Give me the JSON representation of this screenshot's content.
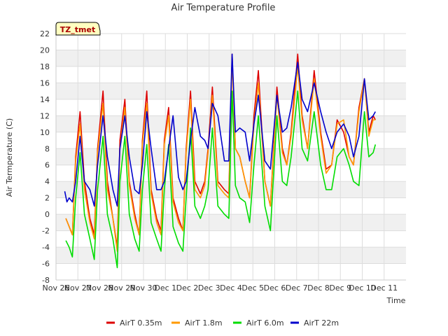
{
  "chart_data": {
    "type": "line",
    "title": "Air Temperature Profile",
    "xlabel": "Time",
    "ylabel": "Air Termperature (C)",
    "site_badge": "TZ_tmet",
    "ylim": [
      -8,
      22
    ],
    "yticks": [
      -8,
      -6,
      -4,
      -2,
      0,
      2,
      4,
      6,
      8,
      10,
      12,
      14,
      16,
      18,
      20,
      22
    ],
    "xlim": [
      0,
      16
    ],
    "xticks": [
      {
        "x": 0,
        "label": "Nov 26"
      },
      {
        "x": 1,
        "label": "Nov 27"
      },
      {
        "x": 2,
        "label": "Nov 28"
      },
      {
        "x": 3,
        "label": "Nov 29"
      },
      {
        "x": 4,
        "label": "Nov 30"
      },
      {
        "x": 5,
        "label": "Dec 1"
      },
      {
        "x": 6,
        "label": "Dec 2"
      },
      {
        "x": 7,
        "label": "Dec 3"
      },
      {
        "x": 8,
        "label": "Dec 4"
      },
      {
        "x": 9,
        "label": "Dec 5"
      },
      {
        "x": 10,
        "label": "Dec 6"
      },
      {
        "x": 11,
        "label": "Dec 7"
      },
      {
        "x": 12,
        "label": "Dec 8"
      },
      {
        "x": 13,
        "label": "Dec 9"
      },
      {
        "x": 14,
        "label": "Dec 10"
      },
      {
        "x": 15,
        "label": "Dec 11"
      }
    ],
    "grid": true,
    "legend_position": "bottom",
    "x_units": "days since Nov 26",
    "series": [
      {
        "name": "AirT 0.35m",
        "color": "#dd0000",
        "x": [
          0.45,
          0.6,
          0.75,
          0.9,
          1.1,
          1.3,
          1.55,
          1.75,
          1.9,
          2.15,
          2.35,
          2.6,
          2.8,
          2.92,
          3.15,
          3.35,
          3.6,
          3.8,
          3.95,
          4.15,
          4.35,
          4.6,
          4.8,
          4.95,
          5.15,
          5.35,
          5.6,
          5.8,
          5.95,
          6.15,
          6.35,
          6.6,
          6.8,
          6.95,
          7.15,
          7.4,
          7.7,
          7.9,
          8.05,
          8.2,
          8.4,
          8.65,
          8.85,
          9.05,
          9.25,
          9.55,
          9.8,
          10.1,
          10.35,
          10.55,
          10.75,
          11.05,
          11.25,
          11.5,
          11.8,
          12.1,
          12.35,
          12.6,
          12.85,
          13.15,
          13.4,
          13.6,
          13.85,
          14.1,
          14.3,
          14.5,
          14.6
        ],
        "values": [
          -0.5,
          -1.5,
          -2.5,
          7,
          12.5,
          4,
          -0.5,
          -2.5,
          8,
          15,
          4,
          -0.5,
          -4,
          9,
          14,
          4,
          0,
          -2.5,
          9,
          15,
          3,
          -0.5,
          -2,
          9,
          13,
          2,
          -0.5,
          -2,
          8,
          15,
          4,
          2.5,
          4,
          8,
          15.5,
          4,
          3,
          2.5,
          19.5,
          8,
          7,
          4,
          2,
          12,
          17.5,
          4,
          1,
          15.5,
          8,
          6,
          10,
          19.5,
          12,
          8,
          17.5,
          10,
          5.5,
          6,
          11.5,
          10,
          7,
          6,
          13,
          16.5,
          10,
          12,
          11.5
        ]
      },
      {
        "name": "AirT 1.8m",
        "color": "#ff9900",
        "x": [
          0.45,
          0.6,
          0.75,
          0.9,
          1.1,
          1.3,
          1.55,
          1.75,
          1.9,
          2.15,
          2.35,
          2.6,
          2.8,
          2.92,
          3.15,
          3.35,
          3.6,
          3.8,
          3.95,
          4.15,
          4.35,
          4.6,
          4.8,
          4.95,
          5.15,
          5.35,
          5.6,
          5.8,
          5.95,
          6.15,
          6.35,
          6.6,
          6.8,
          6.95,
          7.15,
          7.4,
          7.7,
          7.9,
          8.05,
          8.2,
          8.4,
          8.65,
          8.85,
          9.05,
          9.25,
          9.55,
          9.8,
          10.1,
          10.35,
          10.55,
          10.75,
          11.05,
          11.25,
          11.5,
          11.8,
          12.1,
          12.35,
          12.6,
          12.85,
          13.15,
          13.4,
          13.6,
          13.85,
          14.1,
          14.3,
          14.5,
          14.6
        ],
        "values": [
          -0.5,
          -1.5,
          -2.5,
          6.5,
          11,
          3,
          -1,
          -3,
          7.5,
          13.5,
          3,
          -0.5,
          -4.5,
          8,
          13,
          3.5,
          -0.5,
          -2.5,
          8.5,
          13.5,
          2.5,
          -1,
          -2.5,
          8.5,
          12,
          1.5,
          -1,
          -2,
          7.5,
          14,
          3,
          2,
          3.5,
          7.5,
          14.5,
          3.5,
          2.5,
          2,
          19,
          8,
          7,
          4,
          2,
          11,
          16,
          4,
          1,
          14.5,
          7.5,
          6,
          9.5,
          18,
          11.5,
          8,
          16.5,
          9.5,
          5,
          6,
          11,
          11.5,
          7,
          6,
          12.5,
          16.5,
          9.5,
          11.5,
          11.5
        ]
      },
      {
        "name": "AirT 6.0m",
        "color": "#00dd00",
        "x": [
          0.45,
          0.6,
          0.75,
          0.9,
          1.1,
          1.3,
          1.55,
          1.75,
          1.9,
          2.15,
          2.35,
          2.6,
          2.8,
          2.92,
          3.15,
          3.35,
          3.6,
          3.8,
          3.95,
          4.15,
          4.35,
          4.6,
          4.8,
          4.95,
          5.15,
          5.35,
          5.6,
          5.8,
          5.95,
          6.15,
          6.35,
          6.6,
          6.8,
          6.95,
          7.15,
          7.4,
          7.7,
          7.9,
          8.05,
          8.2,
          8.4,
          8.65,
          8.85,
          9.05,
          9.25,
          9.55,
          9.8,
          10.1,
          10.35,
          10.55,
          10.75,
          11.05,
          11.25,
          11.5,
          11.8,
          12.1,
          12.35,
          12.6,
          12.85,
          13.15,
          13.4,
          13.6,
          13.85,
          14.1,
          14.3,
          14.5,
          14.6
        ],
        "values": [
          -3.2,
          -4,
          -5.2,
          2,
          7.5,
          0,
          -3,
          -5.5,
          3,
          9.5,
          0,
          -3,
          -6.5,
          4,
          9.5,
          0,
          -3,
          -4.5,
          3,
          8.5,
          -1,
          -3,
          -4.5,
          3,
          8.5,
          -1.5,
          -3.5,
          -4.5,
          2,
          10.5,
          1,
          -0.5,
          1,
          3,
          10.5,
          1,
          0,
          -0.5,
          15,
          3.5,
          2,
          1.5,
          -1,
          6,
          12,
          1,
          -2,
          12,
          4,
          3.5,
          7,
          15,
          8,
          6.5,
          12.5,
          6,
          3,
          3,
          7,
          8,
          6,
          4,
          3.5,
          12.5,
          7,
          7.5,
          8.5
        ]
      },
      {
        "name": "AirT 22m",
        "color": "#0000cc",
        "x": [
          0.4,
          0.5,
          0.6,
          0.75,
          0.9,
          1.1,
          1.3,
          1.55,
          1.75,
          1.9,
          2.15,
          2.35,
          2.6,
          2.8,
          2.92,
          3.15,
          3.35,
          3.6,
          3.8,
          3.95,
          4.15,
          4.35,
          4.6,
          4.8,
          4.95,
          5.15,
          5.35,
          5.6,
          5.8,
          5.95,
          6.15,
          6.35,
          6.6,
          6.8,
          6.95,
          7.15,
          7.4,
          7.7,
          7.9,
          8.05,
          8.2,
          8.4,
          8.65,
          8.85,
          9.05,
          9.25,
          9.55,
          9.8,
          10.1,
          10.35,
          10.55,
          10.75,
          11.05,
          11.25,
          11.5,
          11.8,
          12.1,
          12.35,
          12.6,
          12.85,
          13.15,
          13.4,
          13.6,
          13.85,
          14.1,
          14.3,
          14.5,
          14.6
        ],
        "values": [
          2.8,
          1.5,
          2,
          1.5,
          4,
          9.5,
          4,
          3,
          1,
          6,
          12,
          7,
          3,
          1,
          8,
          12,
          7,
          3,
          2.5,
          6,
          12.5,
          8,
          3,
          3,
          4,
          8,
          12,
          4.5,
          3,
          4,
          9,
          13,
          9.5,
          9,
          8,
          13.5,
          12,
          6.5,
          6.5,
          19.5,
          10,
          10.5,
          10,
          6.5,
          11,
          14.5,
          6.5,
          5.5,
          14.5,
          10,
          10.5,
          13,
          18.5,
          14,
          12.5,
          16,
          12.5,
          10,
          8,
          10,
          11,
          9.5,
          7,
          9.5,
          16.5,
          11.5,
          12,
          12.5
        ]
      }
    ]
  },
  "legend_items": [
    {
      "label": "AirT 0.35m",
      "color": "#dd0000"
    },
    {
      "label": "AirT 1.8m",
      "color": "#ff9900"
    },
    {
      "label": "AirT 6.0m",
      "color": "#00dd00"
    },
    {
      "label": "AirT 22m",
      "color": "#0000cc"
    }
  ]
}
